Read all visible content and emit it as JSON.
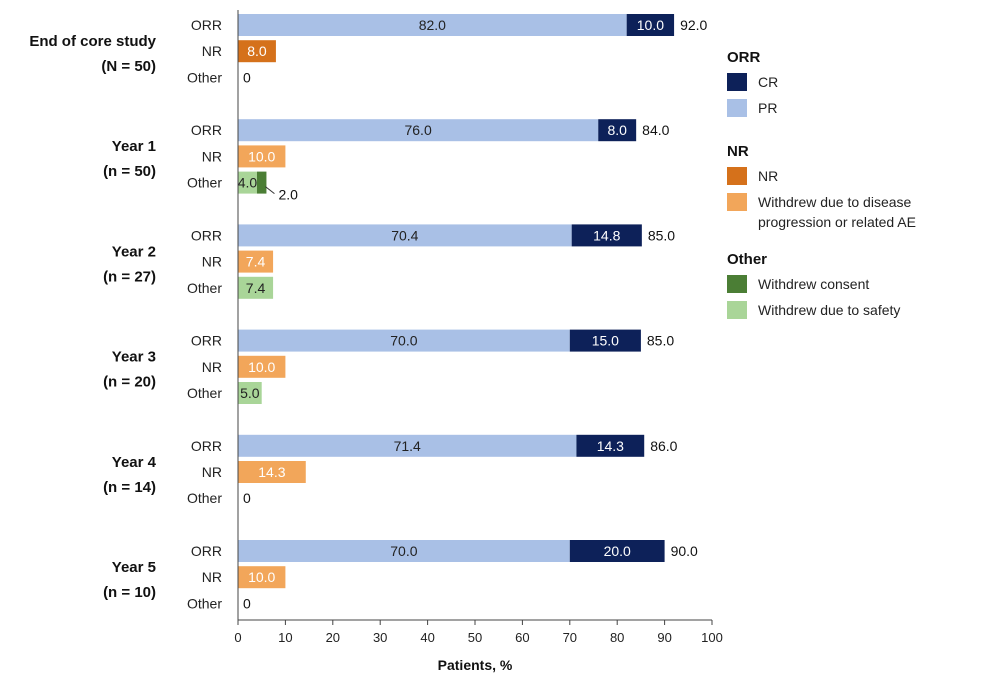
{
  "chart_data": {
    "type": "bar",
    "orientation": "horizontal-stacked",
    "xlabel": "Patients, %",
    "xlim": [
      0,
      100
    ],
    "xticks": [
      0,
      10,
      20,
      30,
      40,
      50,
      60,
      70,
      80,
      90,
      100
    ],
    "grid": false,
    "legend_position": "right",
    "colors": {
      "CR": "#0d2159",
      "PR": "#a9c0e6",
      "NR": "#d5711b",
      "NR_withdrew": "#f2a65a",
      "withdrew_consent": "#4b7e35",
      "withdrew_safety": "#a9d598"
    },
    "legend": [
      {
        "heading": "ORR",
        "items": [
          {
            "key": "CR",
            "label": "CR"
          },
          {
            "key": "PR",
            "label": "PR"
          }
        ]
      },
      {
        "heading": "NR",
        "items": [
          {
            "key": "NR",
            "label": "NR"
          },
          {
            "key": "NR_withdrew",
            "label": "Withdrew due to disease",
            "label2": "progression or related AE"
          }
        ]
      },
      {
        "heading": "Other",
        "items": [
          {
            "key": "withdrew_consent",
            "label": "Withdrew consent"
          },
          {
            "key": "withdrew_safety",
            "label": "Withdrew due to safety"
          }
        ]
      }
    ],
    "groups": [
      {
        "title": "End of core study",
        "subtitle": "(N = 50)",
        "rows": [
          {
            "label": "ORR",
            "segments": [
              {
                "key": "PR",
                "value": 82.0,
                "label": "82.0"
              },
              {
                "key": "CR",
                "value": 10.0,
                "label": "10.0"
              }
            ],
            "total": "92.0"
          },
          {
            "label": "NR",
            "segments": [
              {
                "key": "NR",
                "value": 8.0,
                "label": "8.0"
              }
            ]
          },
          {
            "label": "Other",
            "segments": [],
            "total": "0"
          }
        ]
      },
      {
        "title": "Year 1",
        "subtitle": "(n = 50)",
        "rows": [
          {
            "label": "ORR",
            "segments": [
              {
                "key": "PR",
                "value": 76.0,
                "label": "76.0"
              },
              {
                "key": "CR",
                "value": 8.0,
                "label": "8.0"
              }
            ],
            "total": "84.0"
          },
          {
            "label": "NR",
            "segments": [
              {
                "key": "NR_withdrew",
                "value": 10.0,
                "label": "10.0"
              }
            ]
          },
          {
            "label": "Other",
            "segments": [
              {
                "key": "withdrew_safety",
                "value": 4.0,
                "label": "4.0"
              },
              {
                "key": "withdrew_consent",
                "value": 2.0,
                "label": "2.0",
                "callout": true
              }
            ]
          }
        ]
      },
      {
        "title": "Year 2",
        "subtitle": "(n = 27)",
        "rows": [
          {
            "label": "ORR",
            "segments": [
              {
                "key": "PR",
                "value": 70.4,
                "label": "70.4"
              },
              {
                "key": "CR",
                "value": 14.8,
                "label": "14.8"
              }
            ],
            "total": "85.0"
          },
          {
            "label": "NR",
            "segments": [
              {
                "key": "NR_withdrew",
                "value": 7.4,
                "label": "7.4"
              }
            ]
          },
          {
            "label": "Other",
            "segments": [
              {
                "key": "withdrew_safety",
                "value": 7.4,
                "label": "7.4"
              }
            ]
          }
        ]
      },
      {
        "title": "Year 3",
        "subtitle": "(n = 20)",
        "rows": [
          {
            "label": "ORR",
            "segments": [
              {
                "key": "PR",
                "value": 70.0,
                "label": "70.0"
              },
              {
                "key": "CR",
                "value": 15.0,
                "label": "15.0"
              }
            ],
            "total": "85.0"
          },
          {
            "label": "NR",
            "segments": [
              {
                "key": "NR_withdrew",
                "value": 10.0,
                "label": "10.0"
              }
            ]
          },
          {
            "label": "Other",
            "segments": [
              {
                "key": "withdrew_safety",
                "value": 5.0,
                "label": "5.0"
              }
            ]
          }
        ]
      },
      {
        "title": "Year 4",
        "subtitle": "(n = 14)",
        "rows": [
          {
            "label": "ORR",
            "segments": [
              {
                "key": "PR",
                "value": 71.4,
                "label": "71.4"
              },
              {
                "key": "CR",
                "value": 14.3,
                "label": "14.3"
              }
            ],
            "total": "86.0"
          },
          {
            "label": "NR",
            "segments": [
              {
                "key": "NR_withdrew",
                "value": 14.3,
                "label": "14.3"
              }
            ]
          },
          {
            "label": "Other",
            "segments": [],
            "total": "0"
          }
        ]
      },
      {
        "title": "Year 5",
        "subtitle": "(n = 10)",
        "rows": [
          {
            "label": "ORR",
            "segments": [
              {
                "key": "PR",
                "value": 70.0,
                "label": "70.0"
              },
              {
                "key": "CR",
                "value": 20.0,
                "label": "20.0"
              }
            ],
            "total": "90.0"
          },
          {
            "label": "NR",
            "segments": [
              {
                "key": "NR_withdrew",
                "value": 10.0,
                "label": "10.0"
              }
            ]
          },
          {
            "label": "Other",
            "segments": [],
            "total": "0"
          }
        ]
      }
    ]
  }
}
